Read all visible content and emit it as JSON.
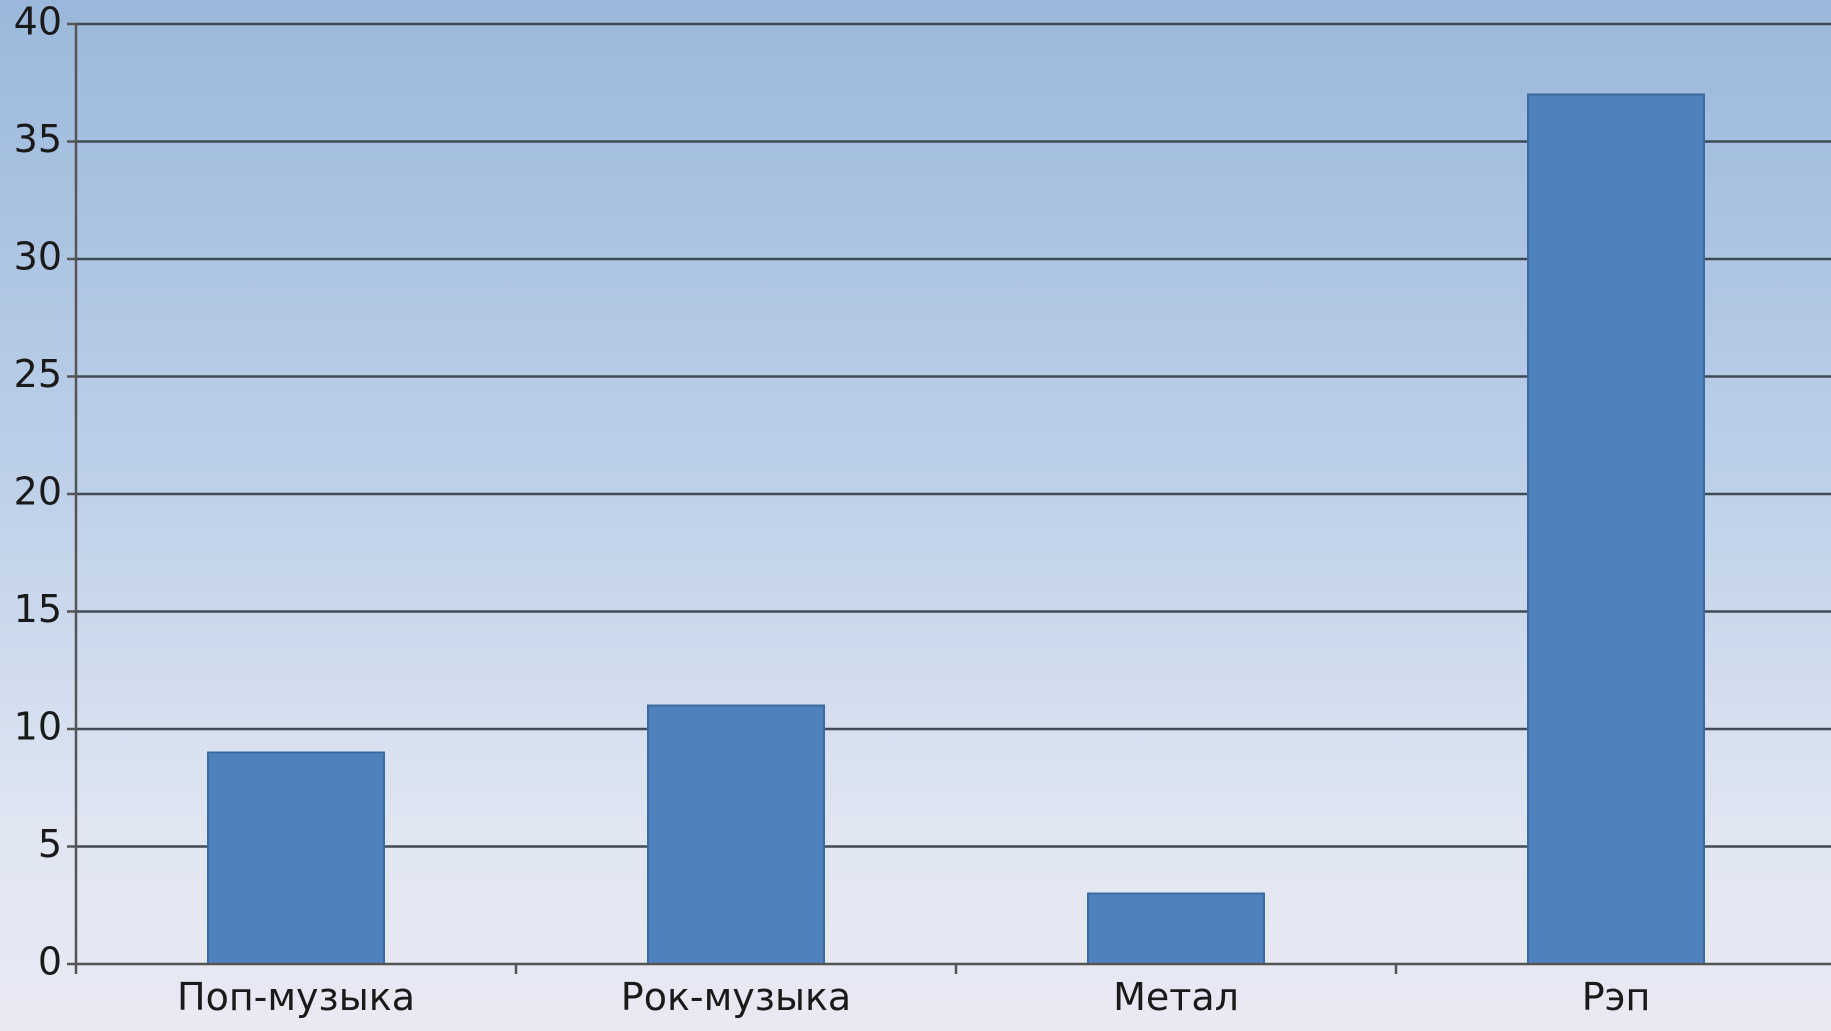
{
  "chart_data": {
    "type": "bar",
    "title": "",
    "xlabel": "",
    "ylabel": "",
    "categories": [
      "Поп-музыка",
      "Рок-музыка",
      "Метал",
      "Рэп"
    ],
    "values": [
      9,
      11,
      3,
      37
    ],
    "ylim": [
      0,
      40
    ],
    "yticks": [
      0,
      5,
      10,
      15,
      20,
      25,
      30,
      35,
      40
    ],
    "grid": true,
    "legend": "none",
    "colors": {
      "bar": "#4f81bd",
      "bar_edge": "#3d6a9e",
      "grid": "#3f4a57",
      "axis": "#555555"
    }
  }
}
